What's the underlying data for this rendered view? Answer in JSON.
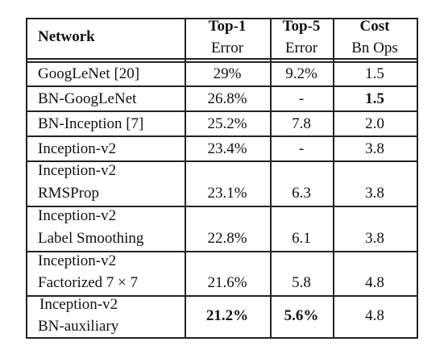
{
  "header": {
    "network": "Network",
    "top1_line1": "Top-1",
    "top1_line2": "Error",
    "top5_line1": "Top-5",
    "top5_line2": "Error",
    "cost_line1": "Cost",
    "cost_line2": "Bn Ops"
  },
  "rows": [
    {
      "name1": "GoogLeNet [20]",
      "name2": "",
      "top1": "29%",
      "top5": "9.2%",
      "cost": "1.5"
    },
    {
      "name1": "BN-GoogLeNet",
      "name2": "",
      "top1": "26.8%",
      "top5": "-",
      "cost": "1.5"
    },
    {
      "name1": "BN-Inception [7]",
      "name2": "",
      "top1": "25.2%",
      "top5": "7.8",
      "cost": "2.0"
    },
    {
      "name1": "Inception-v2",
      "name2": "",
      "top1": "23.4%",
      "top5": "-",
      "cost": "3.8"
    },
    {
      "name1": "Inception-v2",
      "name2": "RMSProp",
      "top1": "23.1%",
      "top5": "6.3",
      "cost": "3.8"
    },
    {
      "name1": "Inception-v2",
      "name2": "Label Smoothing",
      "top1": "22.8%",
      "top5": "6.1",
      "cost": "3.8"
    },
    {
      "name1": "Inception-v2",
      "name2": "Factorized 7 × 7",
      "top1": "21.6%",
      "top5": "5.8",
      "cost": "4.8"
    },
    {
      "name1": "Inception-v2",
      "name2": "BN-auxiliary",
      "top1": "21.2%",
      "top5": "5.6%",
      "cost": "4.8"
    }
  ]
}
